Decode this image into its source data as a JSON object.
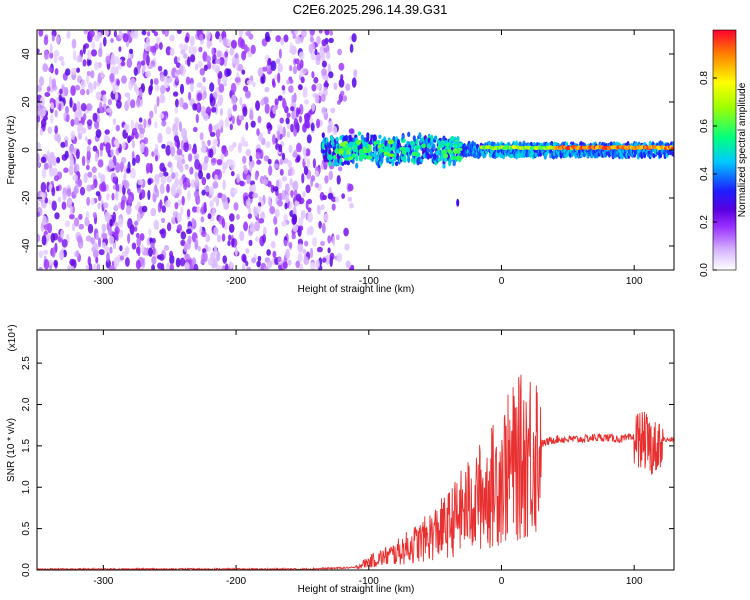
{
  "chart_data": [
    {
      "type": "heatmap",
      "title": "C2E6.2025.296.14.39.G31",
      "xlabel": "Height of straight line (km)",
      "ylabel": "Frequency (Hz)",
      "xlim": [
        -350,
        130
      ],
      "ylim": [
        -50,
        50
      ],
      "xticks": [
        -300,
        -200,
        -100,
        0,
        100
      ],
      "yticks": [
        -40,
        -20,
        0,
        20,
        40
      ],
      "colorbar": {
        "label": "Normalized spectral amplitude",
        "range": [
          0,
          1
        ],
        "ticks": [
          "0.0",
          "0.2",
          "0.4",
          "0.6",
          "0.8"
        ],
        "colors": [
          "#ffffff",
          "#c08cff",
          "#7a00e6",
          "#1e1eff",
          "#00c8ff",
          "#00ff64",
          "#ffff00",
          "#ff8000",
          "#ff0000"
        ]
      },
      "regions": [
        {
          "desc": "noise",
          "x": [
            -350,
            -130
          ],
          "freq": [
            -50,
            50
          ],
          "amplitude": 0.15
        },
        {
          "desc": "signal band",
          "x": [
            -135,
            130
          ],
          "freq": [
            -5,
            5
          ],
          "amplitude": 0.45
        },
        {
          "desc": "strong tone",
          "x": [
            -15,
            130
          ],
          "freq": [
            0,
            2
          ],
          "amplitude": 0.95
        }
      ]
    },
    {
      "type": "line",
      "xlabel": "Height of straight line (km)",
      "ylabel": "SNR (10 * v/v)",
      "multiplier": "(x10⁴)",
      "xlim": [
        -350,
        130
      ],
      "ylim": [
        0,
        2.9
      ],
      "xticks": [
        -300,
        -200,
        -100,
        0,
        100
      ],
      "yticks": [
        "0.0",
        "0.5",
        "1.0",
        "1.5",
        "2.0",
        "2.5"
      ],
      "color": "#e83030",
      "series": [
        {
          "x": [
            -350,
            -300,
            -250,
            -200,
            -150,
            -110,
            -100,
            -90,
            -80,
            -70,
            -60,
            -50,
            -40,
            -30,
            -20,
            -10,
            0,
            10,
            20,
            30,
            40,
            50,
            60,
            70,
            80,
            90,
            100,
            105,
            110,
            113,
            115,
            117,
            120,
            125,
            130
          ],
          "values": [
            0.01,
            0.01,
            0.01,
            0.01,
            0.01,
            0.03,
            0.1,
            0.15,
            0.2,
            0.28,
            0.35,
            0.45,
            0.55,
            0.7,
            0.85,
            0.95,
            1.15,
            1.3,
            1.42,
            1.52,
            1.58,
            1.58,
            1.58,
            1.6,
            1.6,
            1.58,
            1.6,
            1.58,
            1.55,
            1.5,
            1.45,
            1.5,
            1.58,
            1.57,
            1.58
          ]
        }
      ]
    }
  ]
}
